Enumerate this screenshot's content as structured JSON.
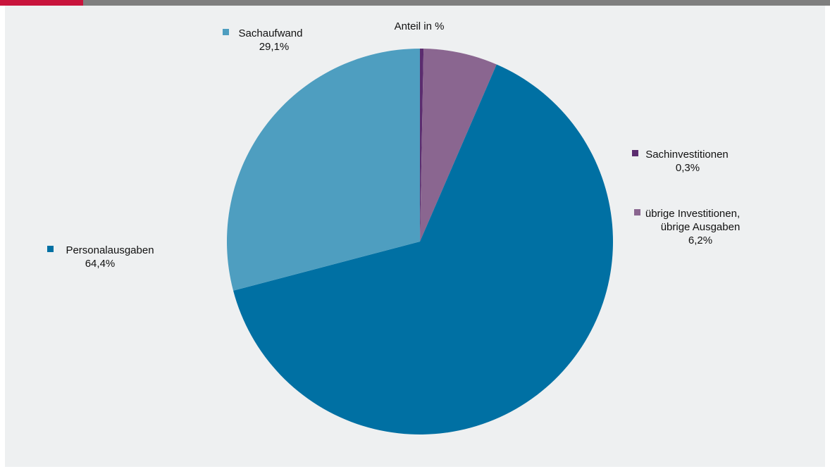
{
  "chart_data": {
    "type": "pie",
    "title": "Anteil in %",
    "start_angle_deg": 90,
    "direction": "clockwise",
    "slices": [
      {
        "label": "Sachinvestitionen",
        "value": 0.3,
        "value_label": "0,3%",
        "color": "#5b2c6f"
      },
      {
        "label": "übrige Investitionen, übrige Ausgaben",
        "label_lines": [
          "übrige Investitionen,",
          "übrige Ausgaben"
        ],
        "value": 6.2,
        "value_label": "6,2%",
        "color": "#8a6690"
      },
      {
        "label": "Personalausgaben",
        "value": 64.4,
        "value_label": "64,4%",
        "color": "#0070a3"
      },
      {
        "label": "Sachaufwand",
        "value": 29.1,
        "value_label": "29,1%",
        "color": "#4e9ec0"
      }
    ]
  },
  "colors": {
    "accent": "#c8143c",
    "topbar": "#7f7f7f",
    "panel_bg": "#eef0f1"
  }
}
